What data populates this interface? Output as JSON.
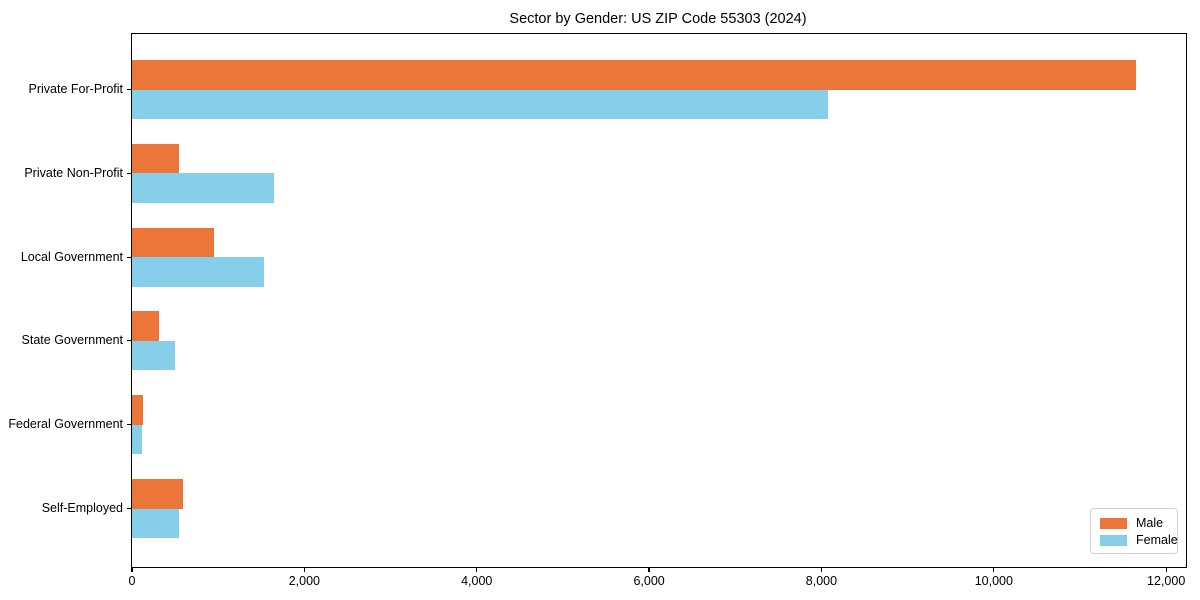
{
  "chart_data": {
    "type": "bar",
    "orientation": "horizontal",
    "title": "Sector by Gender: US ZIP Code 55303 (2024)",
    "categories": [
      "Private For-Profit",
      "Private Non-Profit",
      "Local Government",
      "State Government",
      "Federal Government",
      "Self-Employed"
    ],
    "series": [
      {
        "name": "Male",
        "color": "#ec7639",
        "values": [
          11650,
          550,
          950,
          310,
          125,
          590
        ]
      },
      {
        "name": "Female",
        "color": "#87ceeb",
        "values": [
          8080,
          1650,
          1530,
          500,
          115,
          540
        ]
      }
    ],
    "xlabel": "",
    "ylabel": "",
    "xlim": [
      0,
      12230
    ],
    "xticks": [
      0,
      2000,
      4000,
      6000,
      8000,
      10000,
      12000
    ],
    "xtick_labels": [
      "0",
      "2,000",
      "4,000",
      "6,000",
      "8,000",
      "10,000",
      "12,000"
    ],
    "grid": false,
    "legend": {
      "position": "lower right",
      "entries": [
        "Male",
        "Female"
      ]
    },
    "frame_color": "#000000",
    "background_color": "#ffffff"
  }
}
